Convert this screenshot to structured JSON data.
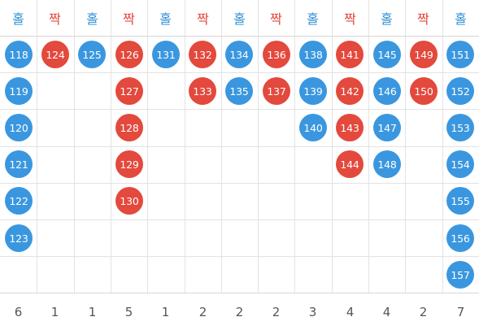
{
  "colors": {
    "odd": "#3a97df",
    "even": "#e3493c",
    "grid": "#e3e3e3",
    "count_text": "#555555"
  },
  "columns": [
    {
      "label": "홀",
      "type": "odd",
      "balls": [
        "118",
        "119",
        "120",
        "121",
        "122",
        "123"
      ],
      "count": "6"
    },
    {
      "label": "짝",
      "type": "even",
      "balls": [
        "124"
      ],
      "count": "1"
    },
    {
      "label": "홀",
      "type": "odd",
      "balls": [
        "125"
      ],
      "count": "1"
    },
    {
      "label": "짝",
      "type": "even",
      "balls": [
        "126",
        "127",
        "128",
        "129",
        "130"
      ],
      "count": "5"
    },
    {
      "label": "홀",
      "type": "odd",
      "balls": [
        "131"
      ],
      "count": "1"
    },
    {
      "label": "짝",
      "type": "even",
      "balls": [
        "132",
        "133"
      ],
      "count": "2"
    },
    {
      "label": "홀",
      "type": "odd",
      "balls": [
        "134",
        "135"
      ],
      "count": "2"
    },
    {
      "label": "짝",
      "type": "even",
      "balls": [
        "136",
        "137"
      ],
      "count": "2"
    },
    {
      "label": "홀",
      "type": "odd",
      "balls": [
        "138",
        "139",
        "140"
      ],
      "count": "3"
    },
    {
      "label": "짝",
      "type": "even",
      "balls": [
        "141",
        "142",
        "143",
        "144"
      ],
      "count": "4"
    },
    {
      "label": "홀",
      "type": "odd",
      "balls": [
        "145",
        "146",
        "147",
        "148"
      ],
      "count": "4"
    },
    {
      "label": "짝",
      "type": "even",
      "balls": [
        "149",
        "150"
      ],
      "count": "2"
    },
    {
      "label": "홀",
      "type": "odd",
      "balls": [
        "151",
        "152",
        "153",
        "154",
        "155",
        "156",
        "157"
      ],
      "count": "7"
    }
  ]
}
